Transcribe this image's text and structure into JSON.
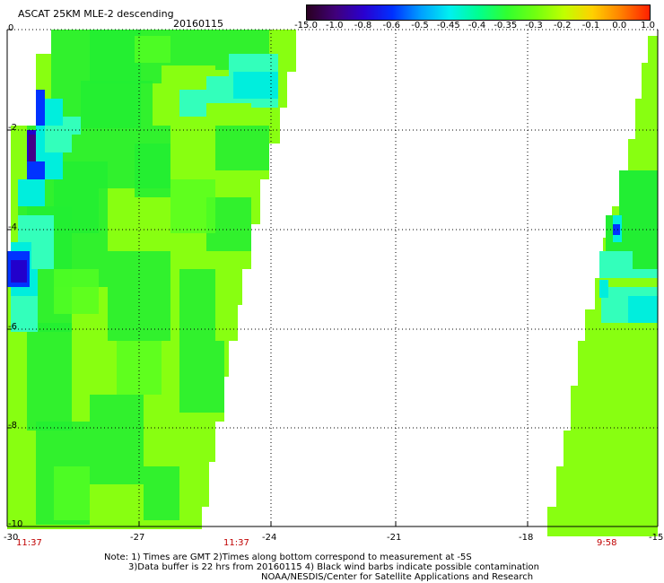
{
  "header": {
    "title": "ASCAT 25KM MLE-2 descending",
    "date": "20160115"
  },
  "colorbar": {
    "labels": [
      "-15.0",
      "-1.0",
      "-0.8",
      "-0.6",
      "-0.5",
      "-0.45",
      "-0.4",
      "-0.35",
      "-0.3",
      "-0.2",
      "-0.1",
      "0.0",
      "1.0"
    ],
    "colors": [
      "#2a0020",
      "#40007a",
      "#2a00d0",
      "#0030ff",
      "#00a0ff",
      "#00f0f0",
      "#00ff90",
      "#30ff30",
      "#70ff10",
      "#c0ff00",
      "#ffd000",
      "#ff8000",
      "#ff2000"
    ]
  },
  "map": {
    "lon_labels": [
      "-30",
      "-27",
      "-24",
      "-21",
      "-18",
      "-15"
    ],
    "lat_labels": [
      "0",
      "-2",
      "-4",
      "-6",
      "-8",
      "-10"
    ],
    "time_labels": [
      "11:37",
      "11:37",
      "9:58"
    ],
    "swath_colors": {
      "green": "#22ee33",
      "yellowgreen": "#88ff11",
      "lime": "#55ff22",
      "cyan": "#00eedd",
      "lightcyan": "#33ffbb",
      "blue": "#0033ff",
      "deepblue": "#2200cc",
      "darkpurple": "#440088"
    }
  },
  "footer": {
    "note1": "Note: 1) Times are GMT 2)Times along bottom correspond to measurement at -5S",
    "note2": "3)Data buffer is 22 hrs from 20160115 4) Black wind barbs indicate possible contamination",
    "credit": "NOAA/NESDIS/Center for Satellite Applications and Research"
  }
}
